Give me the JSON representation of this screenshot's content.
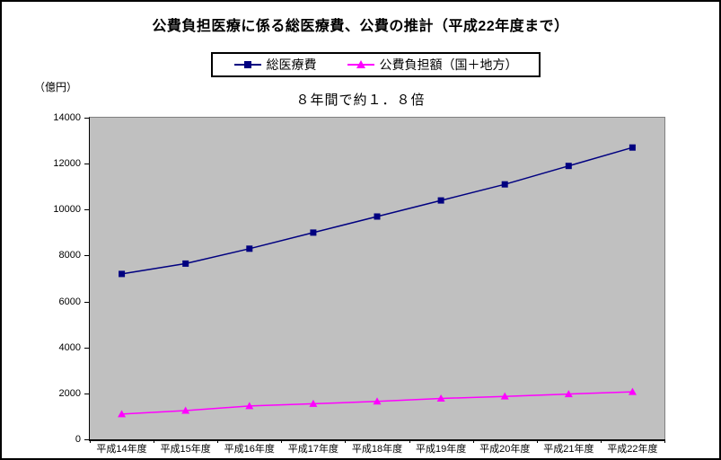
{
  "title": "公費負担医療に係る総医療費、公費の推計（平成22年度まで）",
  "unit_label": "（億円）",
  "annotation": "８年間で約１．８倍",
  "legend": [
    {
      "label": "総医療費",
      "color": "#000080",
      "marker": "square"
    },
    {
      "label": "公費負担額（国＋地方）",
      "color": "#ff00ff",
      "marker": "triangle"
    }
  ],
  "chart_data": {
    "type": "line",
    "title": "公費負担医療に係る総医療費、公費の推計（平成22年度まで）",
    "xlabel": "",
    "ylabel": "（億円）",
    "categories": [
      "平成14年度",
      "平成15年度",
      "平成16年度",
      "平成17年度",
      "平成18年度",
      "平成19年度",
      "平成20年度",
      "平成21年度",
      "平成22年度"
    ],
    "series": [
      {
        "name": "総医療費",
        "color": "#000080",
        "marker": "square",
        "values": [
          7200,
          7650,
          8300,
          9000,
          9700,
          10400,
          11100,
          11900,
          12700
        ]
      },
      {
        "name": "公費負担額（国＋地方）",
        "color": "#ff00ff",
        "marker": "triangle",
        "values": [
          1100,
          1250,
          1450,
          1550,
          1650,
          1780,
          1870,
          1970,
          2070
        ]
      }
    ],
    "ylim": [
      0,
      14000
    ],
    "yticks": [
      0,
      2000,
      4000,
      6000,
      8000,
      10000,
      12000,
      14000
    ],
    "grid": false,
    "legend_position": "top-center",
    "plot_background": "#c0c0c0",
    "annotation": "８年間で約１．８倍"
  },
  "colors": {
    "series1": "#000080",
    "series2": "#ff00ff",
    "plot_bg": "#c0c0c0",
    "frame_border": "#000000",
    "text": "#000000"
  }
}
